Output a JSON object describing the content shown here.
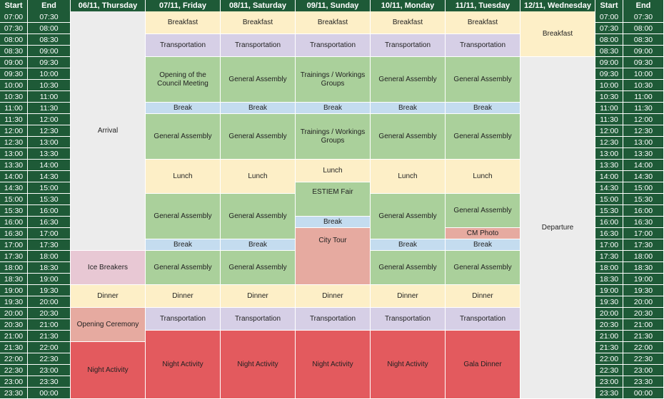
{
  "colors": {
    "header": "#1e5a37",
    "time": "#1e5a37",
    "breakfast": "#fdefc7",
    "transport": "#d6cfe6",
    "session": "#aad09b",
    "break": "#c4dcef",
    "lunch": "#fdefc7",
    "dinner": "#fdefc7",
    "night": "#e35a5e",
    "travel": "#ececec",
    "icebreakers": "#e8c8d4",
    "ceremony": "#e6aaa0",
    "citytour": "#e6aaa0",
    "photo": "#e6aaa0"
  },
  "header": {
    "start": "Start",
    "end": "End",
    "days": [
      "06/11, Thursday",
      "07/11, Friday",
      "08/11, Saturday",
      "09/11, Sunday",
      "10/11, Monday",
      "11/11, Tuesday",
      "12/11, Wednesday"
    ]
  },
  "slots": [
    [
      "07:00",
      "07:30"
    ],
    [
      "07:30",
      "08:00"
    ],
    [
      "08:00",
      "08:30"
    ],
    [
      "08:30",
      "09:00"
    ],
    [
      "09:00",
      "09:30"
    ],
    [
      "09:30",
      "10:00"
    ],
    [
      "10:00",
      "10:30"
    ],
    [
      "10:30",
      "11:00"
    ],
    [
      "11:00",
      "11:30"
    ],
    [
      "11:30",
      "12:00"
    ],
    [
      "12:00",
      "12:30"
    ],
    [
      "12:30",
      "13:00"
    ],
    [
      "13:00",
      "13:30"
    ],
    [
      "13:30",
      "14:00"
    ],
    [
      "14:00",
      "14:30"
    ],
    [
      "14:30",
      "15:00"
    ],
    [
      "15:00",
      "15:30"
    ],
    [
      "15:30",
      "16:00"
    ],
    [
      "16:00",
      "16:30"
    ],
    [
      "16:30",
      "17:00"
    ],
    [
      "17:00",
      "17:30"
    ],
    [
      "17:30",
      "18:00"
    ],
    [
      "18:00",
      "18:30"
    ],
    [
      "18:30",
      "19:00"
    ],
    [
      "19:00",
      "19:30"
    ],
    [
      "19:30",
      "20:00"
    ],
    [
      "20:00",
      "20:30"
    ],
    [
      "20:30",
      "21:00"
    ],
    [
      "21:00",
      "21:30"
    ],
    [
      "21:30",
      "22:00"
    ],
    [
      "22:00",
      "22:30"
    ],
    [
      "22:30",
      "23:00"
    ],
    [
      "23:00",
      "23:30"
    ],
    [
      "23:30",
      "00:00"
    ]
  ],
  "events": [
    {
      "day": 0,
      "start": 0,
      "span": 21,
      "label": "Arrival",
      "type": "travel"
    },
    {
      "day": 0,
      "start": 21,
      "span": 3,
      "label": "Ice Breakers",
      "type": "icebreakers"
    },
    {
      "day": 0,
      "start": 24,
      "span": 2,
      "label": "Dinner",
      "type": "dinner"
    },
    {
      "day": 0,
      "start": 26,
      "span": 3,
      "label": "Opening Ceremony",
      "type": "ceremony"
    },
    {
      "day": 0,
      "start": 29,
      "span": 5,
      "label": "Night Activity",
      "type": "night"
    },
    {
      "day": 1,
      "start": 0,
      "span": 2,
      "label": "Breakfast",
      "type": "breakfast"
    },
    {
      "day": 1,
      "start": 2,
      "span": 2,
      "label": "Transportation",
      "type": "transport"
    },
    {
      "day": 1,
      "start": 4,
      "span": 4,
      "label": "Opening of the Council Meeting",
      "type": "session"
    },
    {
      "day": 1,
      "start": 8,
      "span": 1,
      "label": "Break",
      "type": "break"
    },
    {
      "day": 1,
      "start": 9,
      "span": 4,
      "label": "General Assembly",
      "type": "session"
    },
    {
      "day": 1,
      "start": 13,
      "span": 3,
      "label": "Lunch",
      "type": "lunch"
    },
    {
      "day": 1,
      "start": 16,
      "span": 4,
      "label": "General Assembly",
      "type": "session"
    },
    {
      "day": 1,
      "start": 20,
      "span": 1,
      "label": "Break",
      "type": "break"
    },
    {
      "day": 1,
      "start": 21,
      "span": 3,
      "label": "General Assembly",
      "type": "session"
    },
    {
      "day": 1,
      "start": 24,
      "span": 2,
      "label": "Dinner",
      "type": "dinner"
    },
    {
      "day": 1,
      "start": 26,
      "span": 2,
      "label": "Transportation",
      "type": "transport"
    },
    {
      "day": 1,
      "start": 28,
      "span": 6,
      "label": "Night Activity",
      "type": "night"
    },
    {
      "day": 2,
      "start": 0,
      "span": 2,
      "label": "Breakfast",
      "type": "breakfast"
    },
    {
      "day": 2,
      "start": 2,
      "span": 2,
      "label": "Transportation",
      "type": "transport"
    },
    {
      "day": 2,
      "start": 4,
      "span": 4,
      "label": "General Assembly",
      "type": "session"
    },
    {
      "day": 2,
      "start": 8,
      "span": 1,
      "label": "Break",
      "type": "break"
    },
    {
      "day": 2,
      "start": 9,
      "span": 4,
      "label": "General Assembly",
      "type": "session"
    },
    {
      "day": 2,
      "start": 13,
      "span": 3,
      "label": "Lunch",
      "type": "lunch"
    },
    {
      "day": 2,
      "start": 16,
      "span": 4,
      "label": "General Assembly",
      "type": "session"
    },
    {
      "day": 2,
      "start": 20,
      "span": 1,
      "label": "Break",
      "type": "break"
    },
    {
      "day": 2,
      "start": 21,
      "span": 3,
      "label": "General Assembly",
      "type": "session"
    },
    {
      "day": 2,
      "start": 24,
      "span": 2,
      "label": "Dinner",
      "type": "dinner"
    },
    {
      "day": 2,
      "start": 26,
      "span": 2,
      "label": "Transportation",
      "type": "transport"
    },
    {
      "day": 2,
      "start": 28,
      "span": 6,
      "label": "Night Activity",
      "type": "night"
    },
    {
      "day": 3,
      "start": 0,
      "span": 2,
      "label": "Breakfast",
      "type": "breakfast"
    },
    {
      "day": 3,
      "start": 2,
      "span": 2,
      "label": "Transportation",
      "type": "transport"
    },
    {
      "day": 3,
      "start": 4,
      "span": 4,
      "label": "Trainings / Workings Groups",
      "type": "session"
    },
    {
      "day": 3,
      "start": 8,
      "span": 1,
      "label": "Break",
      "type": "break"
    },
    {
      "day": 3,
      "start": 9,
      "span": 4,
      "label": "Trainings / Workings Groups",
      "type": "session"
    },
    {
      "day": 3,
      "start": 13,
      "span": 2,
      "label": "Lunch",
      "type": "lunch"
    },
    {
      "day": 3,
      "start": 15,
      "span": 3,
      "label": "ESTIEM Fair",
      "type": "session",
      "valign": "top"
    },
    {
      "day": 3,
      "start": 18,
      "span": 1,
      "label": "Break",
      "type": "break"
    },
    {
      "day": 3,
      "start": 19,
      "span": 5,
      "label": "City Tour",
      "type": "citytour",
      "valign": "top2"
    },
    {
      "day": 3,
      "start": 24,
      "span": 2,
      "label": "Dinner",
      "type": "dinner"
    },
    {
      "day": 3,
      "start": 26,
      "span": 2,
      "label": "Transportation",
      "type": "transport"
    },
    {
      "day": 3,
      "start": 28,
      "span": 6,
      "label": "Night Activity",
      "type": "night"
    },
    {
      "day": 4,
      "start": 0,
      "span": 2,
      "label": "Breakfast",
      "type": "breakfast"
    },
    {
      "day": 4,
      "start": 2,
      "span": 2,
      "label": "Transportation",
      "type": "transport"
    },
    {
      "day": 4,
      "start": 4,
      "span": 4,
      "label": "General Assembly",
      "type": "session"
    },
    {
      "day": 4,
      "start": 8,
      "span": 1,
      "label": "Break",
      "type": "break"
    },
    {
      "day": 4,
      "start": 9,
      "span": 4,
      "label": "General Assembly",
      "type": "session"
    },
    {
      "day": 4,
      "start": 13,
      "span": 3,
      "label": "Lunch",
      "type": "lunch"
    },
    {
      "day": 4,
      "start": 16,
      "span": 4,
      "label": "General Assembly",
      "type": "session"
    },
    {
      "day": 4,
      "start": 20,
      "span": 1,
      "label": "Break",
      "type": "break"
    },
    {
      "day": 4,
      "start": 21,
      "span": 3,
      "label": "General Assembly",
      "type": "session"
    },
    {
      "day": 4,
      "start": 24,
      "span": 2,
      "label": "Dinner",
      "type": "dinner"
    },
    {
      "day": 4,
      "start": 26,
      "span": 2,
      "label": "Transportation",
      "type": "transport"
    },
    {
      "day": 4,
      "start": 28,
      "span": 6,
      "label": "Night Activity",
      "type": "night"
    },
    {
      "day": 5,
      "start": 0,
      "span": 2,
      "label": "Breakfast",
      "type": "breakfast"
    },
    {
      "day": 5,
      "start": 2,
      "span": 2,
      "label": "Transportation",
      "type": "transport"
    },
    {
      "day": 5,
      "start": 4,
      "span": 4,
      "label": "General Assembly",
      "type": "session"
    },
    {
      "day": 5,
      "start": 8,
      "span": 1,
      "label": "Break",
      "type": "break"
    },
    {
      "day": 5,
      "start": 9,
      "span": 4,
      "label": "General Assembly",
      "type": "session"
    },
    {
      "day": 5,
      "start": 13,
      "span": 3,
      "label": "Lunch",
      "type": "lunch"
    },
    {
      "day": 5,
      "start": 16,
      "span": 3,
      "label": "General Assembly",
      "type": "session"
    },
    {
      "day": 5,
      "start": 19,
      "span": 1,
      "label": "CM Photo",
      "type": "photo"
    },
    {
      "day": 5,
      "start": 20,
      "span": 1,
      "label": "Break",
      "type": "break"
    },
    {
      "day": 5,
      "start": 21,
      "span": 3,
      "label": "General Assembly",
      "type": "session"
    },
    {
      "day": 5,
      "start": 24,
      "span": 2,
      "label": "Dinner",
      "type": "dinner"
    },
    {
      "day": 5,
      "start": 26,
      "span": 2,
      "label": "Transportation",
      "type": "transport"
    },
    {
      "day": 5,
      "start": 28,
      "span": 6,
      "label": "Gala Dinner",
      "type": "night"
    },
    {
      "day": 6,
      "start": 0,
      "span": 4,
      "label": "Breakfast",
      "type": "breakfast"
    },
    {
      "day": 6,
      "start": 4,
      "span": 30,
      "label": "Departure",
      "type": "travel"
    }
  ]
}
